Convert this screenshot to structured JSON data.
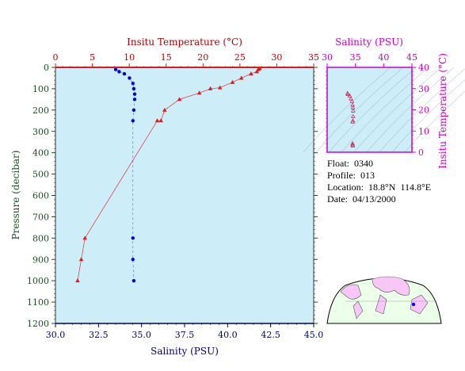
{
  "chart_data": [
    {
      "type": "line",
      "title": "",
      "top_axis_label": "Insitu Temperature (°C)",
      "top_axis_range": [
        0,
        35
      ],
      "top_ticks": [
        "0",
        "5",
        "10",
        "15",
        "20",
        "25",
        "30",
        "35"
      ],
      "bottom_axis_label": "Salinity (PSU)",
      "bottom_axis_range": [
        30,
        45
      ],
      "bottom_ticks": [
        "30.0",
        "32.5",
        "35.0",
        "37.5",
        "40.0",
        "42.5",
        "45.0"
      ],
      "ylabel": "Pressure (decibar)",
      "ylim": [
        0,
        1200
      ],
      "y_inverted": true,
      "y_ticks": [
        "0",
        "100",
        "200",
        "300",
        "400",
        "500",
        "600",
        "700",
        "800",
        "900",
        "1000",
        "1100",
        "1200"
      ],
      "colors": {
        "temperature": "#e31a1c",
        "salinity": "#0000dd",
        "background": "#cdeef8"
      },
      "series": [
        {
          "key": "temperature",
          "marker": "triangle",
          "axis": "top",
          "points": [
            {
              "x": 27.7,
              "y": 5
            },
            {
              "x": 27.5,
              "y": 10
            },
            {
              "x": 27.3,
              "y": 20
            },
            {
              "x": 26.5,
              "y": 30
            },
            {
              "x": 25.2,
              "y": 50
            },
            {
              "x": 24.0,
              "y": 70
            },
            {
              "x": 22.3,
              "y": 95
            },
            {
              "x": 21.0,
              "y": 100
            },
            {
              "x": 19.5,
              "y": 120
            },
            {
              "x": 16.8,
              "y": 150
            },
            {
              "x": 14.8,
              "y": 200
            },
            {
              "x": 14.3,
              "y": 250
            },
            {
              "x": 13.8,
              "y": 250
            },
            {
              "x": 4.0,
              "y": 800
            },
            {
              "x": 3.5,
              "y": 900
            },
            {
              "x": 3.0,
              "y": 1000
            }
          ]
        },
        {
          "key": "salinity",
          "marker": "dot",
          "axis": "bottom",
          "points": [
            {
              "x": 33.5,
              "y": 10
            },
            {
              "x": 33.7,
              "y": 20
            },
            {
              "x": 34.0,
              "y": 30
            },
            {
              "x": 34.3,
              "y": 50
            },
            {
              "x": 34.5,
              "y": 75
            },
            {
              "x": 34.55,
              "y": 100
            },
            {
              "x": 34.6,
              "y": 125
            },
            {
              "x": 34.6,
              "y": 150
            },
            {
              "x": 34.55,
              "y": 200
            },
            {
              "x": 34.5,
              "y": 250
            },
            {
              "x": 34.5,
              "y": 800
            },
            {
              "x": 34.5,
              "y": 900
            },
            {
              "x": 34.55,
              "y": 1000
            }
          ]
        }
      ]
    },
    {
      "type": "scatter",
      "xlabel": "Salinity (PSU)",
      "xlim": [
        30,
        45
      ],
      "x_ticks": [
        "30",
        "35",
        "40",
        "45"
      ],
      "ylabel": "Insitu Temperature (°C)",
      "ylim": [
        0,
        40
      ],
      "y_ticks": [
        "0",
        "10",
        "20",
        "30",
        "40"
      ],
      "colors": {
        "axis": "#cc00cc",
        "points": "#cc3366"
      },
      "points": [
        {
          "x": 33.6,
          "y": 27.7
        },
        {
          "x": 33.7,
          "y": 27.3
        },
        {
          "x": 34.0,
          "y": 26.5
        },
        {
          "x": 34.2,
          "y": 25.2
        },
        {
          "x": 34.4,
          "y": 24.0
        },
        {
          "x": 34.5,
          "y": 22.3
        },
        {
          "x": 34.55,
          "y": 21.0
        },
        {
          "x": 34.6,
          "y": 19.5
        },
        {
          "x": 34.6,
          "y": 16.8
        },
        {
          "x": 34.55,
          "y": 14.8
        },
        {
          "x": 34.5,
          "y": 14.3
        },
        {
          "x": 34.5,
          "y": 4.0
        },
        {
          "x": 34.5,
          "y": 3.5
        },
        {
          "x": 34.55,
          "y": 3.0
        }
      ]
    }
  ],
  "info": {
    "float": "Float:  0340",
    "profile": "Profile:  013",
    "location": "Location:  18.8°N  114.8°E",
    "date": "Date:  04/13/2000"
  }
}
